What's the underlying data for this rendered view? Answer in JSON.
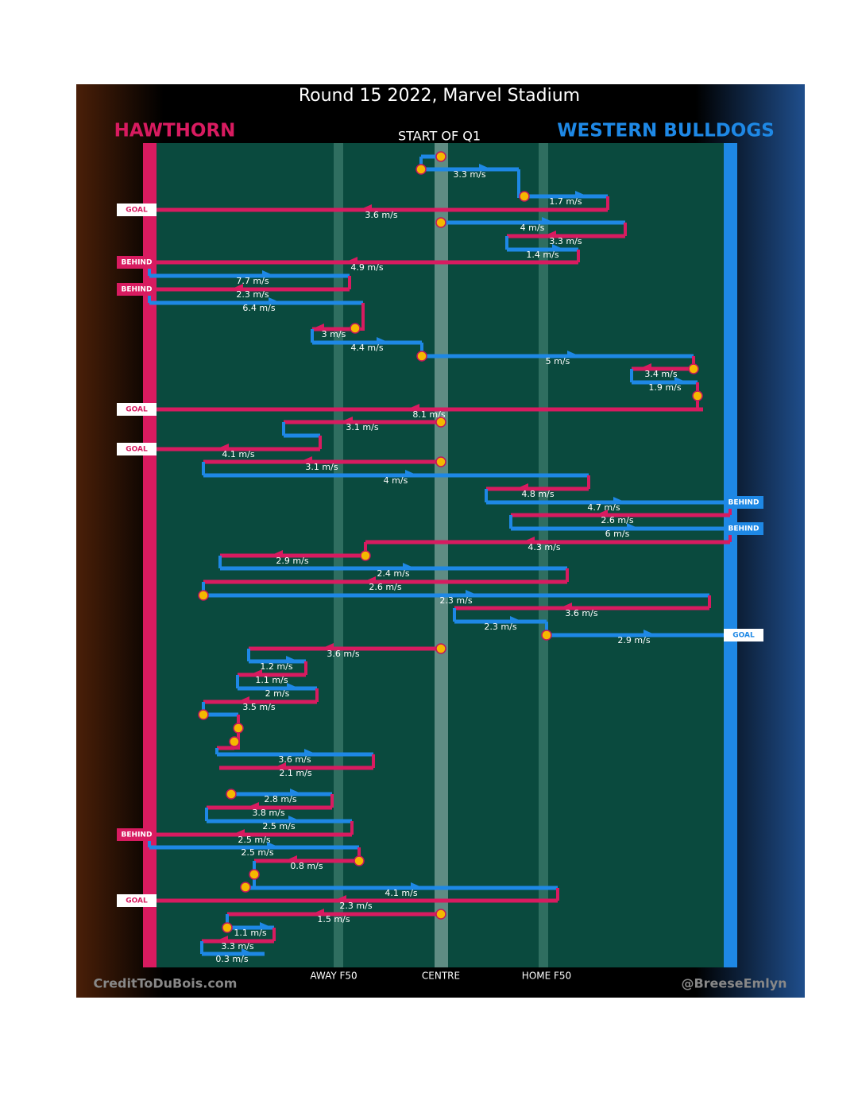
{
  "header": {
    "title": "Round 15 2022, Marvel Stadium",
    "home_team": "HAWTHORN",
    "away_team": "WESTERN BULLDOGS",
    "period": "START OF Q1"
  },
  "field_labels": [
    "AWAY F50",
    "CENTRE",
    "HOME F50"
  ],
  "footer": {
    "left": "CreditToDuBois.com",
    "right": "@BreeseEmlyn"
  },
  "outcomes": [
    "GOAL",
    "BEHIND",
    "BEHIND",
    "GOAL",
    "GOAL",
    "BEHIND",
    "BEHIND",
    "GOAL",
    "BEHIND",
    "GOAL"
  ],
  "speeds": [
    "3.3 m/s",
    "1.7 m/s",
    "3.6 m/s",
    "4 m/s",
    "3.3 m/s",
    "1.4 m/s",
    "4.9 m/s",
    "7.7 m/s",
    "2.3 m/s",
    "6.4 m/s",
    "3 m/s",
    "4.4 m/s",
    "5 m/s",
    "3.4 m/s",
    "1.9 m/s",
    "8.1 m/s",
    "3.1 m/s",
    "4.1 m/s",
    "3.1 m/s",
    "4 m/s",
    "4.8 m/s",
    "4.7 m/s",
    "2.6 m/s",
    "6 m/s",
    "4.3 m/s",
    "2.9 m/s",
    "2.4 m/s",
    "2.6 m/s",
    "2.3 m/s",
    "3.6 m/s",
    "2.3 m/s",
    "2.9 m/s",
    "3.6 m/s",
    "1.2 m/s",
    "1.1 m/s",
    "2 m/s",
    "3.5 m/s",
    "3.6 m/s",
    "2.1 m/s",
    "2.8 m/s",
    "3.8 m/s",
    "2.5 m/s",
    "2.5 m/s",
    "2.5 m/s",
    "0.8 m/s",
    "4.1 m/s",
    "2.3 m/s",
    "1.5 m/s",
    "1.1 m/s",
    "3.3 m/s",
    "0.3 m/s"
  ]
}
